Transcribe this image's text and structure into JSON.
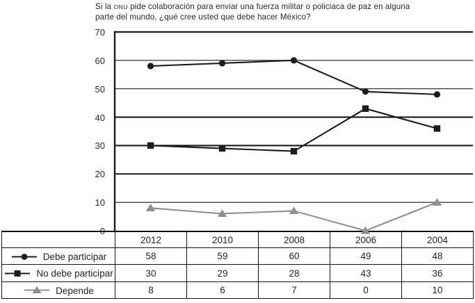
{
  "title": {
    "line1_pre": "Si la ",
    "line1_smallcaps": "ONU",
    "line1_post": " pide colaboración para enviar una fuerza militar o policiaca de paz en alguna",
    "line2": "parte del mundo, ¿qué cree usted que debe hacer México?"
  },
  "chart_data": {
    "type": "line",
    "title": "Si la ONU pide colaboración para enviar una fuerza militar o policiaca de paz en alguna parte del mundo, ¿qué cree usted que debe hacer México?",
    "categories": [
      "2012",
      "2010",
      "2008",
      "2006",
      "2004"
    ],
    "series": [
      {
        "name": "Debe participar",
        "values": [
          58,
          59,
          60,
          49,
          48
        ],
        "color": "#1c1c1c",
        "marker": "circle"
      },
      {
        "name": "No debe participar",
        "values": [
          30,
          29,
          28,
          43,
          36
        ],
        "color": "#1c1c1c",
        "marker": "square"
      },
      {
        "name": "Depende",
        "values": [
          8,
          6,
          7,
          0,
          10
        ],
        "color": "#8f8f8f",
        "marker": "triangle"
      }
    ],
    "ylim": [
      0,
      70
    ],
    "yticks": [
      0,
      10,
      20,
      30,
      40,
      50,
      60,
      70
    ],
    "grid": true,
    "legend_position": "table-rows-left",
    "axis_color": "#1b1b1b"
  }
}
